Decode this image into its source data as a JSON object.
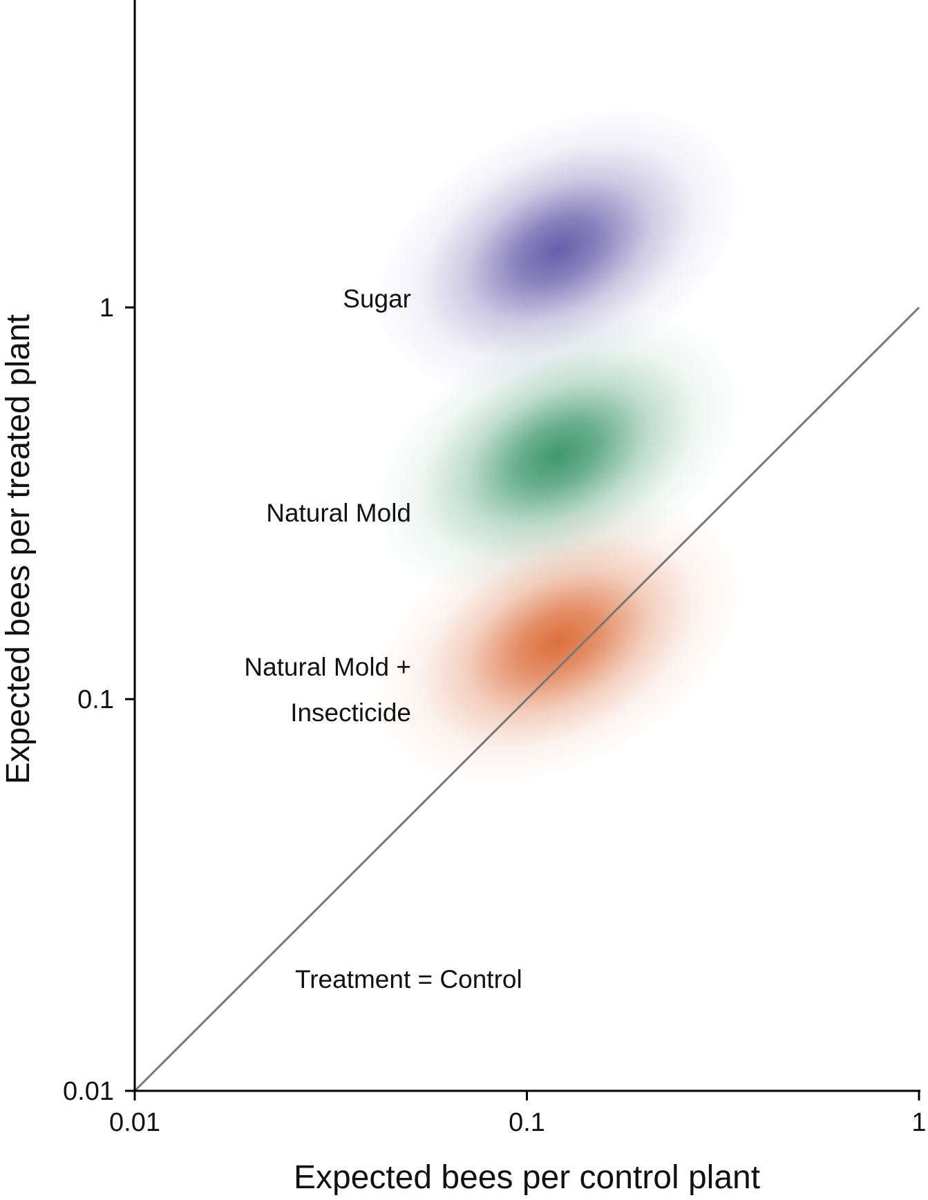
{
  "chart_data": {
    "type": "heatmap",
    "title": "",
    "xlabel": "Expected bees per control plant",
    "ylabel": "Expected bees per treated plant",
    "xscale": "log",
    "yscale": "log",
    "xlim": [
      0.01,
      1
    ],
    "ylim": [
      0.01,
      1
    ],
    "grid": false,
    "x_ticks": [
      {
        "value": 0.01,
        "label": "0.01"
      },
      {
        "value": 0.1,
        "label": "0.1"
      },
      {
        "value": 1,
        "label": "1"
      }
    ],
    "y_ticks": [
      {
        "value": 0.01,
        "label": "0.01"
      },
      {
        "value": 0.1,
        "label": "0.1"
      },
      {
        "value": 1,
        "label": "1"
      }
    ],
    "series": [
      {
        "name": "Sugar",
        "label_lines": [
          "Sugar"
        ],
        "color": "#5b4fa3",
        "peak": {
          "x": 0.12,
          "y": 1.4
        }
      },
      {
        "name": "Natural Mold",
        "label_lines": [
          "Natural Mold"
        ],
        "color": "#2e8f61",
        "peak": {
          "x": 0.12,
          "y": 0.42
        }
      },
      {
        "name": "Natural Mold + Insecticide",
        "label_lines": [
          "Natural Mold +",
          "Insecticide"
        ],
        "color": "#d9622b",
        "peak": {
          "x": 0.12,
          "y": 0.14
        }
      }
    ],
    "reference_line": {
      "label": "Treatment = Control",
      "points": [
        [
          0.01,
          0.01
        ],
        [
          1,
          1
        ]
      ],
      "color": "#777777"
    }
  }
}
